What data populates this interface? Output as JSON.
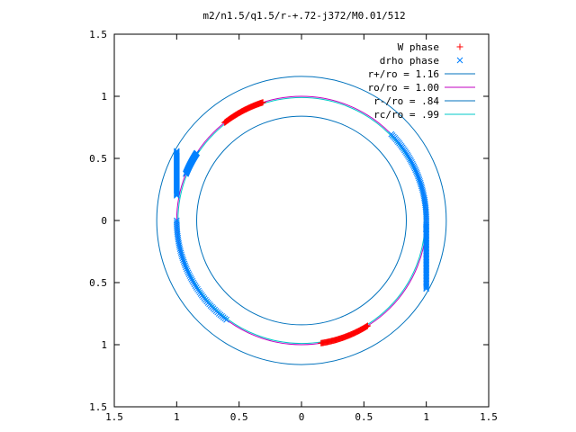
{
  "chart_data": {
    "type": "scatter",
    "title": "m2/n1.5/q1.5/r-+.72-j372/M0.01/512",
    "xlabel": "",
    "ylabel": "",
    "xlim": [
      -1.5,
      1.5
    ],
    "ylim": [
      -1.5,
      1.5
    ],
    "x_tick_labels": [
      "1.5",
      "1",
      "0.5",
      "0",
      "0.5",
      "1",
      "1.5"
    ],
    "y_tick_labels": [
      "1.5",
      "1",
      "0.5",
      "0",
      "0.5",
      "1",
      "1.5"
    ],
    "x_ticks": [
      -1.5,
      -1,
      -0.5,
      0,
      0.5,
      1,
      1.5
    ],
    "y_ticks": [
      1.5,
      1,
      0.5,
      0,
      -0.5,
      -1,
      -1.5
    ],
    "grid": false,
    "legend_position": "top-right",
    "series": [
      {
        "name": "W phase",
        "kind": "points",
        "marker": "+",
        "color": "#ff0000",
        "arcs": [
          {
            "radius": 1.0,
            "from_deg": 108,
            "to_deg": 128
          },
          {
            "radius": 1.0,
            "from_deg": -81,
            "to_deg": -58
          }
        ]
      },
      {
        "name": "drho phase",
        "kind": "points",
        "marker": "x",
        "color": "#0080ff",
        "arcs": [
          {
            "radius": 1.0,
            "from_deg": 44,
            "to_deg": -4
          },
          {
            "radius": 1.0,
            "from_deg": 147,
            "to_deg": 158
          },
          {
            "radius": 1.0,
            "from_deg": 180,
            "to_deg": 233
          }
        ],
        "vertical_segments": [
          {
            "x": -1.0,
            "y_from": 0.2,
            "y_to": 0.56
          },
          {
            "x": 1.0,
            "y_from": -0.55,
            "y_to": -0.04
          }
        ]
      },
      {
        "name": "r+/ro = 1.16",
        "kind": "circle",
        "radius": 1.16,
        "color": "#0072bd"
      },
      {
        "name": "ro/ro = 1.00",
        "kind": "circle",
        "radius": 1.0,
        "color": "#c000c0"
      },
      {
        "name": "r-/ro = .84",
        "kind": "circle",
        "radius": 0.84,
        "color": "#0072bd"
      },
      {
        "name": "rc/ro = .99",
        "kind": "circle",
        "radius": 0.99,
        "color": "#00c8c8"
      }
    ]
  }
}
